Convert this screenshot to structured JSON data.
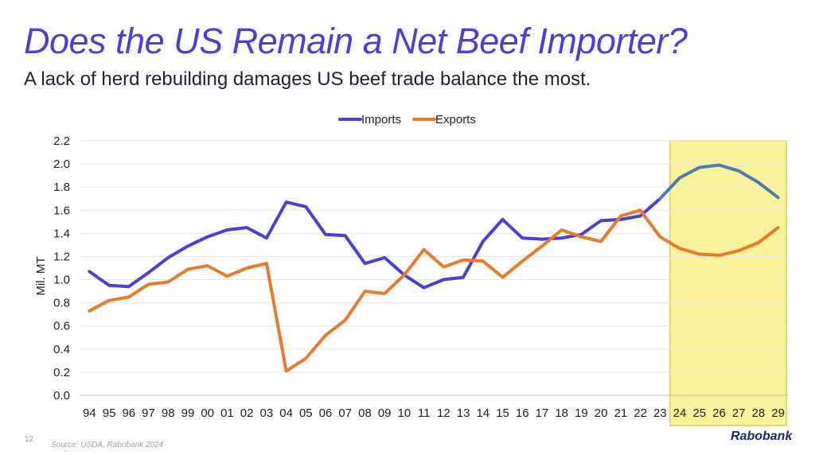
{
  "page": {
    "title": "Does the US Remain a Net Beef Importer?",
    "subtitle": "A lack of herd rebuilding damages US beef trade balance the most.",
    "page_number": "12",
    "source": "Source: USDA, Rabobank 2024",
    "brand": "Rabobank"
  },
  "colors": {
    "imports": "#4b3fd9",
    "exports": "#ea7a2a",
    "imports_forecast": "#4a7cb0",
    "highlight_fill": "#f8f08a",
    "highlight_border": "#e6cf3a"
  },
  "chart_data": {
    "type": "line",
    "ylabel": "Mil. MT",
    "ylim": [
      0.0,
      2.2
    ],
    "yticks": [
      "0.0",
      "0.2",
      "0.4",
      "0.6",
      "0.8",
      "1.0",
      "1.2",
      "1.4",
      "1.6",
      "1.8",
      "2.0",
      "2.2"
    ],
    "categories": [
      "94",
      "95",
      "96",
      "97",
      "98",
      "99",
      "00",
      "01",
      "02",
      "03",
      "04",
      "05",
      "06",
      "07",
      "08",
      "09",
      "10",
      "11",
      "12",
      "13",
      "14",
      "15",
      "16",
      "17",
      "18",
      "19",
      "20",
      "21",
      "22",
      "23",
      "24",
      "25",
      "26",
      "27",
      "28",
      "29"
    ],
    "forecast_start": "24",
    "legend_position": "top-center",
    "grid": true,
    "series": [
      {
        "name": "Imports",
        "values": [
          1.07,
          0.95,
          0.94,
          1.06,
          1.19,
          1.29,
          1.37,
          1.43,
          1.45,
          1.36,
          1.67,
          1.63,
          1.39,
          1.38,
          1.14,
          1.19,
          1.04,
          0.93,
          1.0,
          1.02,
          1.33,
          1.52,
          1.36,
          1.35,
          1.36,
          1.39,
          1.51,
          1.52,
          1.55,
          1.7,
          1.88,
          1.97,
          1.99,
          1.94,
          1.84,
          1.71
        ]
      },
      {
        "name": "Exports",
        "values": [
          0.73,
          0.82,
          0.85,
          0.96,
          0.98,
          1.09,
          1.12,
          1.03,
          1.1,
          1.14,
          0.21,
          0.32,
          0.52,
          0.65,
          0.9,
          0.88,
          1.04,
          1.26,
          1.11,
          1.17,
          1.16,
          1.02,
          1.16,
          1.29,
          1.43,
          1.37,
          1.33,
          1.55,
          1.6,
          1.37,
          1.27,
          1.22,
          1.21,
          1.25,
          1.32,
          1.45
        ]
      }
    ]
  }
}
